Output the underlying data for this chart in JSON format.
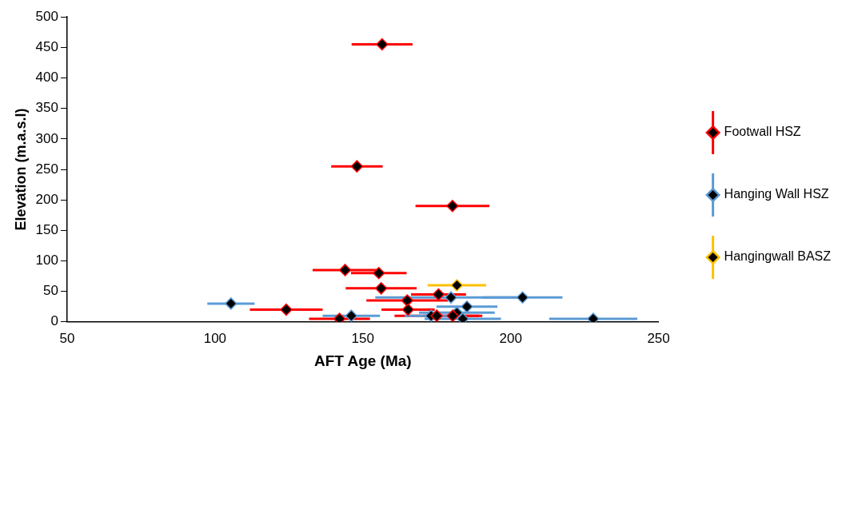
{
  "chart_data": {
    "type": "scatter",
    "xlabel": "AFT Age (Ma)",
    "ylabel": "Elevation (m.a.s.l)",
    "xlim": [
      50,
      250
    ],
    "xticks": [
      50,
      100,
      150,
      200,
      250
    ],
    "ylim": [
      0,
      500
    ],
    "yticks": [
      0,
      50,
      100,
      150,
      200,
      250,
      300,
      350,
      400,
      450,
      500
    ],
    "grid": false,
    "legend": "right",
    "marker": "diamond",
    "series": [
      {
        "name": "Footwall HSZ",
        "color": "#ff0000",
        "x": [
          156.5,
          148,
          180.3,
          144,
          155.4,
          156.2,
          175.6,
          165,
          124.1,
          165.3,
          175,
          180.4,
          142.1
        ],
        "values": [
          455,
          255,
          190,
          85,
          80,
          55,
          45,
          35,
          20,
          20,
          10,
          10,
          5
        ],
        "xerrors": [
          10.3,
          8.7,
          12.5,
          11,
          9.4,
          12,
          9.3,
          13.8,
          12.3,
          9,
          14.3,
          10,
          10.3
        ]
      },
      {
        "name": "Hanging Wall HSZ",
        "color": "#5b9bd5",
        "x": [
          105.4,
          179.8,
          204,
          185.2,
          181.8,
          146.1,
          173.1,
          183.8,
          227.9
        ],
        "values": [
          30,
          40,
          40,
          25,
          15,
          10,
          10,
          5,
          5
        ],
        "xerrors": [
          8,
          25.6,
          13.5,
          10.3,
          12.8,
          9.7,
          9,
          12.9,
          14.9
        ]
      },
      {
        "name": "Hangingwall BASZ",
        "color": "#ffc000",
        "x": [
          181.8
        ],
        "values": [
          60
        ],
        "xerrors": [
          9.9
        ]
      }
    ]
  }
}
